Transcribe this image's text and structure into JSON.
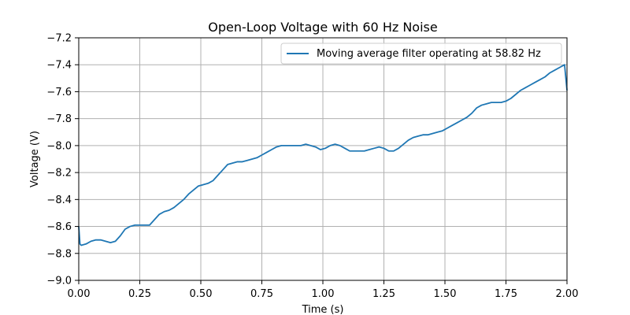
{
  "chart_data": {
    "type": "line",
    "title": "Open-Loop Voltage with 60 Hz Noise",
    "xlabel": "Time (s)",
    "ylabel": "Voltage (V)",
    "xlim": [
      0,
      2.0
    ],
    "ylim": [
      -9.0,
      -7.2
    ],
    "grid": true,
    "legend_position": "top-right",
    "x_ticks": [
      "0.00",
      "0.25",
      "0.50",
      "0.75",
      "1.00",
      "1.25",
      "1.50",
      "1.75",
      "2.00"
    ],
    "y_ticks": [
      "−7.2",
      "−7.4",
      "−7.6",
      "−7.8",
      "−8.0",
      "−8.2",
      "−8.4",
      "−8.6",
      "−8.8",
      "−9.0"
    ],
    "series": [
      {
        "name": "Moving average filter operating at 58.82 Hz",
        "color": "#1f77b4",
        "x": [
          0.0,
          0.005,
          0.01,
          0.03,
          0.05,
          0.07,
          0.09,
          0.11,
          0.13,
          0.15,
          0.17,
          0.19,
          0.21,
          0.23,
          0.25,
          0.27,
          0.29,
          0.31,
          0.33,
          0.35,
          0.37,
          0.39,
          0.41,
          0.43,
          0.45,
          0.47,
          0.49,
          0.51,
          0.53,
          0.55,
          0.57,
          0.59,
          0.61,
          0.63,
          0.65,
          0.67,
          0.69,
          0.71,
          0.73,
          0.75,
          0.77,
          0.79,
          0.81,
          0.83,
          0.85,
          0.87,
          0.89,
          0.91,
          0.93,
          0.95,
          0.97,
          0.99,
          1.01,
          1.03,
          1.05,
          1.07,
          1.09,
          1.11,
          1.13,
          1.15,
          1.17,
          1.19,
          1.21,
          1.23,
          1.25,
          1.27,
          1.29,
          1.31,
          1.33,
          1.35,
          1.37,
          1.39,
          1.41,
          1.43,
          1.45,
          1.47,
          1.49,
          1.51,
          1.53,
          1.55,
          1.57,
          1.59,
          1.61,
          1.63,
          1.65,
          1.67,
          1.69,
          1.71,
          1.73,
          1.75,
          1.77,
          1.79,
          1.81,
          1.83,
          1.85,
          1.87,
          1.89,
          1.91,
          1.93,
          1.95,
          1.97,
          1.99,
          2.0
        ],
        "y": [
          -8.6,
          -8.73,
          -8.74,
          -8.73,
          -8.71,
          -8.7,
          -8.7,
          -8.71,
          -8.72,
          -8.71,
          -8.67,
          -8.62,
          -8.6,
          -8.59,
          -8.59,
          -8.59,
          -8.59,
          -8.55,
          -8.51,
          -8.49,
          -8.48,
          -8.46,
          -8.43,
          -8.4,
          -8.36,
          -8.33,
          -8.3,
          -8.29,
          -8.28,
          -8.26,
          -8.22,
          -8.18,
          -8.14,
          -8.13,
          -8.12,
          -8.12,
          -8.11,
          -8.1,
          -8.09,
          -8.07,
          -8.05,
          -8.03,
          -8.01,
          -8.0,
          -8.0,
          -8.0,
          -8.0,
          -8.0,
          -7.99,
          -8.0,
          -8.01,
          -8.03,
          -8.02,
          -8.0,
          -7.99,
          -8.0,
          -8.02,
          -8.04,
          -8.04,
          -8.04,
          -8.04,
          -8.03,
          -8.02,
          -8.01,
          -8.02,
          -8.04,
          -8.04,
          -8.02,
          -7.99,
          -7.96,
          -7.94,
          -7.93,
          -7.92,
          -7.92,
          -7.91,
          -7.9,
          -7.89,
          -7.87,
          -7.85,
          -7.83,
          -7.81,
          -7.79,
          -7.76,
          -7.72,
          -7.7,
          -7.69,
          -7.68,
          -7.68,
          -7.68,
          -7.67,
          -7.65,
          -7.62,
          -7.59,
          -7.57,
          -7.55,
          -7.53,
          -7.51,
          -7.49,
          -7.46,
          -7.44,
          -7.42,
          -7.4,
          -7.59
        ]
      }
    ]
  }
}
